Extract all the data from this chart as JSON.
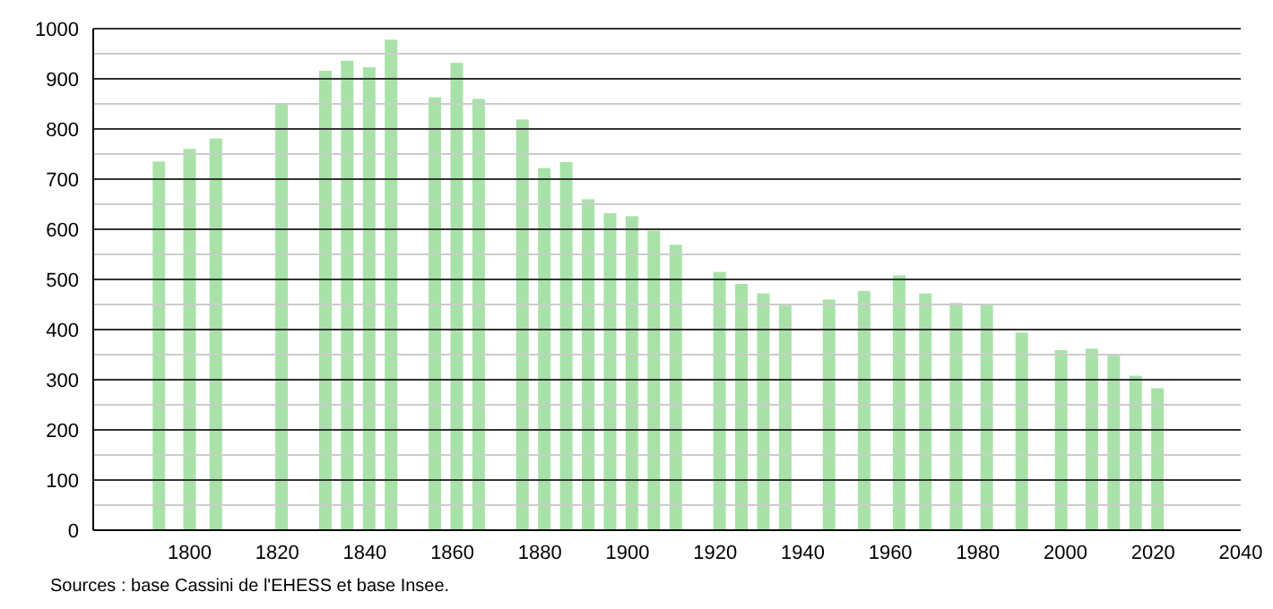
{
  "chart_data": {
    "type": "bar",
    "x": [
      1793,
      1800,
      1806,
      1821,
      1831,
      1836,
      1841,
      1846,
      1856,
      1861,
      1866,
      1876,
      1881,
      1886,
      1891,
      1896,
      1901,
      1906,
      1911,
      1921,
      1926,
      1931,
      1936,
      1946,
      1954,
      1962,
      1968,
      1975,
      1982,
      1990,
      1999,
      2006,
      2011,
      2016,
      2021
    ],
    "values": [
      735,
      760,
      781,
      849,
      916,
      936,
      923,
      978,
      863,
      932,
      860,
      819,
      722,
      734,
      660,
      632,
      626,
      597,
      569,
      515,
      491,
      472,
      448,
      460,
      477,
      508,
      472,
      453,
      448,
      394,
      359,
      362,
      348,
      308,
      283
    ],
    "color": "#a8e2a8",
    "xlim": [
      1778,
      2040
    ],
    "xticks": [
      1800,
      1820,
      1840,
      1860,
      1880,
      1900,
      1920,
      1940,
      1960,
      1980,
      2000,
      2020,
      2040
    ],
    "ylim": [
      0,
      1000
    ],
    "yticks": [
      0,
      {
        "value": 50,
        "label": null
      },
      100,
      {
        "value": 150,
        "label": null
      },
      200,
      {
        "value": 250,
        "label": null
      },
      300,
      {
        "value": 350,
        "label": null
      },
      400,
      {
        "value": 450,
        "label": null
      },
      500,
      {
        "value": 550,
        "label": null
      },
      600,
      {
        "value": 650,
        "label": null
      },
      700,
      {
        "value": 750,
        "label": null
      },
      800,
      {
        "value": 850,
        "label": null
      },
      900,
      {
        "value": 950,
        "label": null
      },
      1000
    ],
    "grid": "y",
    "annotations": [
      "Sources : base Cassini de l'EHESS et base Insee."
    ]
  }
}
